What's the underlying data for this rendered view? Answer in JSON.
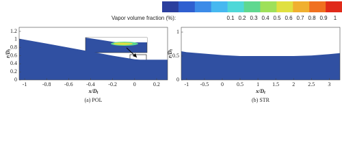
{
  "colorbar": {
    "title": "Vapor volume fraction (%):",
    "ticks": [
      0.1,
      0.2,
      0.3,
      0.4,
      0.5,
      0.6,
      0.7,
      0.8,
      0.9,
      1
    ],
    "colors": [
      "#2b3f9e",
      "#2f5fd0",
      "#3c8be8",
      "#46b8f0",
      "#4fd8d8",
      "#5fd890",
      "#9ee05a",
      "#e0e040",
      "#f0b030",
      "#f07020",
      "#e02a1a"
    ]
  },
  "chart_data": [
    {
      "type": "area",
      "caption": "(a) POL",
      "color": "#3050a2",
      "xlabel": {
        "main": "x/D",
        "sub": "t"
      },
      "ylabel": {
        "main": "r/D",
        "sub": "t"
      },
      "xlim": [
        -1.05,
        0.3
      ],
      "ylim": [
        0,
        1.3
      ],
      "xticks": [
        -1,
        -0.8,
        -0.6,
        -0.4,
        -0.2,
        0,
        0.2
      ],
      "yticks": [
        0,
        0.2,
        0.4,
        0.6,
        0.8,
        1,
        1.2
      ],
      "x": [
        -1.05,
        -0.8,
        -0.6,
        -0.4,
        -0.2,
        0,
        0.05,
        0.3
      ],
      "values": [
        1.02,
        0.9,
        0.8,
        0.7,
        0.6,
        0.51,
        0.5,
        0.5
      ]
    },
    {
      "type": "area",
      "caption": "(b) STR",
      "color": "#3050a2",
      "xlabel": {
        "main": "x/D",
        "sub": "t"
      },
      "ylabel": {
        "main": "r/D",
        "sub": "t"
      },
      "xlim": [
        -1.15,
        3.3
      ],
      "ylim": [
        0,
        1.1
      ],
      "xticks": [
        -1,
        -0.5,
        0,
        0.5,
        1,
        1.5,
        2,
        2.5,
        3
      ],
      "yticks": [
        0,
        0.5,
        1
      ],
      "x": [
        -1.15,
        -1,
        -0.5,
        0,
        0.5,
        1,
        2,
        2.5,
        3,
        3.3
      ],
      "values": [
        0.6,
        0.58,
        0.55,
        0.52,
        0.5,
        0.5,
        0.5,
        0.51,
        0.54,
        0.56
      ]
    }
  ]
}
